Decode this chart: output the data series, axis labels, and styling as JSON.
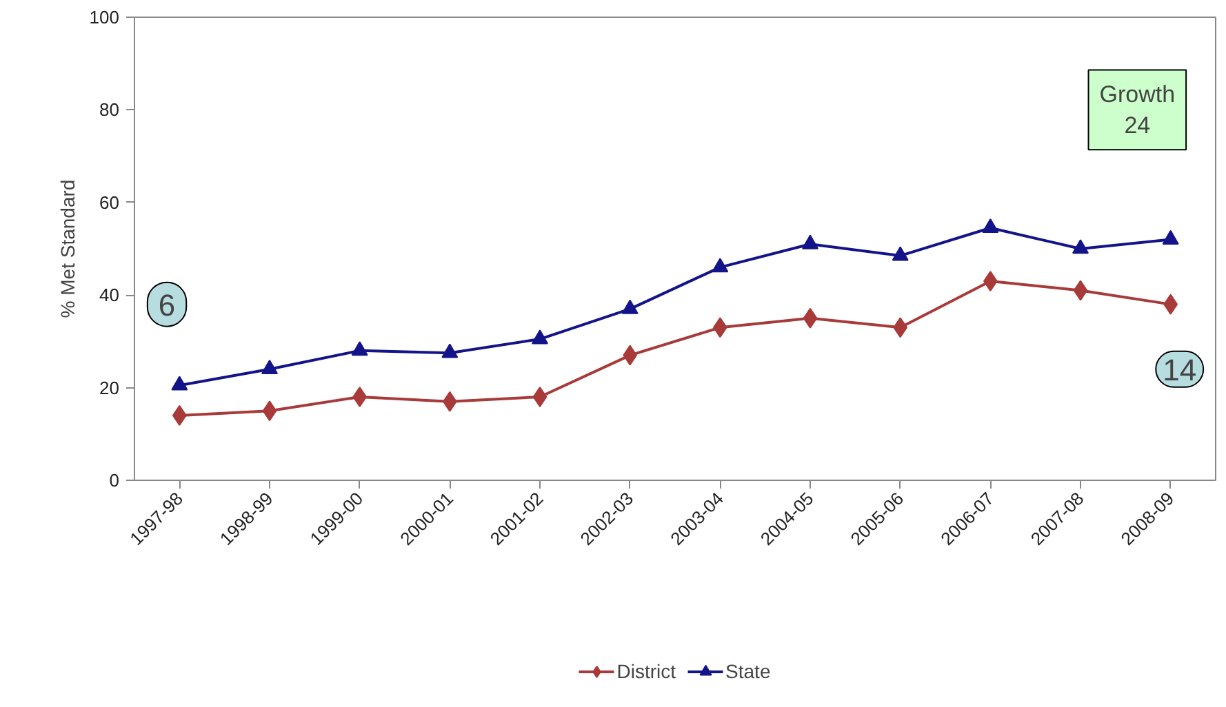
{
  "chart_data": {
    "type": "line",
    "ylabel": "% Met Standard",
    "categories": [
      "1997-98",
      "1998-99",
      "1999-00",
      "2000-01",
      "2001-02",
      "2002-03",
      "2003-04",
      "2004-05",
      "2005-06",
      "2006-07",
      "2007-08",
      "2008-09"
    ],
    "series": [
      {
        "name": "District",
        "color": "#a83a3a",
        "marker": "diamond",
        "values": [
          14,
          15,
          18,
          17,
          18,
          27,
          33,
          35,
          33,
          43,
          41,
          38
        ]
      },
      {
        "name": "State",
        "color": "#14148a",
        "marker": "triangle",
        "values": [
          20.5,
          24,
          28,
          27.5,
          30.5,
          37,
          46,
          51,
          48.5,
          54.5,
          50,
          52
        ]
      }
    ],
    "ylim": [
      0,
      100
    ],
    "yticks": [
      0,
      20,
      40,
      60,
      80,
      100
    ],
    "grid": false,
    "legend": "bottom",
    "line_style": "solid",
    "annotations": [
      "Growth",
      "24",
      "6",
      "14"
    ]
  }
}
